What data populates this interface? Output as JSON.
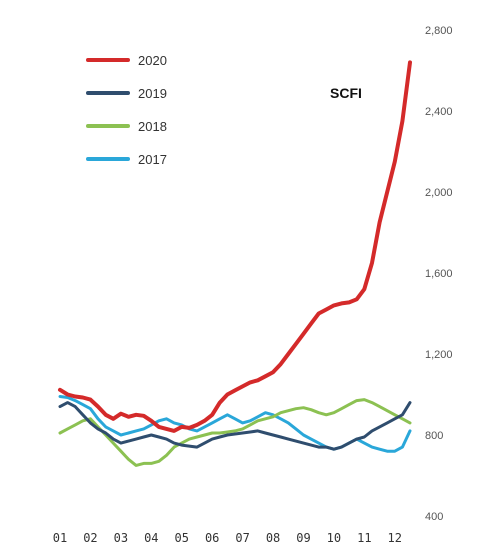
{
  "chart_data": {
    "type": "line",
    "title": "SCFI",
    "xlabel": "",
    "ylabel": "",
    "x": [
      "01",
      "02",
      "03",
      "04",
      "05",
      "06",
      "07",
      "08",
      "09",
      "10",
      "11",
      "12"
    ],
    "xlim": [
      1,
      12.5
    ],
    "ylim": [
      400,
      2800
    ],
    "yticks": [
      400,
      800,
      1200,
      1600,
      2000,
      2400,
      2800
    ],
    "ytick_labels": [
      "400",
      "800",
      "1,200",
      "1,600",
      "2,000",
      "2,400",
      "2,800"
    ],
    "grid": false,
    "legend_position": "top-left",
    "y_axis_position": "right",
    "series": [
      {
        "name": "2020",
        "color": "#d42a2a",
        "points": [
          [
            1.0,
            1023
          ],
          [
            1.25,
            1000
          ],
          [
            1.5,
            990
          ],
          [
            1.75,
            985
          ],
          [
            2.0,
            975
          ],
          [
            2.25,
            940
          ],
          [
            2.5,
            900
          ],
          [
            2.75,
            880
          ],
          [
            3.0,
            905
          ],
          [
            3.25,
            890
          ],
          [
            3.5,
            900
          ],
          [
            3.75,
            895
          ],
          [
            4.0,
            870
          ],
          [
            4.25,
            840
          ],
          [
            4.5,
            830
          ],
          [
            4.75,
            820
          ],
          [
            5.0,
            840
          ],
          [
            5.25,
            835
          ],
          [
            5.5,
            850
          ],
          [
            5.75,
            870
          ],
          [
            6.0,
            900
          ],
          [
            6.25,
            960
          ],
          [
            6.5,
            1000
          ],
          [
            6.75,
            1020
          ],
          [
            7.0,
            1040
          ],
          [
            7.25,
            1060
          ],
          [
            7.5,
            1070
          ],
          [
            7.75,
            1090
          ],
          [
            8.0,
            1110
          ],
          [
            8.25,
            1150
          ],
          [
            8.5,
            1200
          ],
          [
            8.75,
            1250
          ],
          [
            9.0,
            1300
          ],
          [
            9.25,
            1350
          ],
          [
            9.5,
            1400
          ],
          [
            9.75,
            1420
          ],
          [
            10.0,
            1440
          ],
          [
            10.25,
            1450
          ],
          [
            10.5,
            1455
          ],
          [
            10.75,
            1470
          ],
          [
            11.0,
            1520
          ],
          [
            11.25,
            1650
          ],
          [
            11.5,
            1850
          ],
          [
            11.75,
            2000
          ],
          [
            12.0,
            2150
          ],
          [
            12.25,
            2350
          ],
          [
            12.5,
            2640
          ]
        ]
      },
      {
        "name": "2019",
        "color": "#2f4d6e",
        "points": [
          [
            1.0,
            940
          ],
          [
            1.25,
            960
          ],
          [
            1.5,
            940
          ],
          [
            1.75,
            900
          ],
          [
            2.0,
            860
          ],
          [
            2.25,
            830
          ],
          [
            2.5,
            810
          ],
          [
            2.75,
            780
          ],
          [
            3.0,
            760
          ],
          [
            3.25,
            770
          ],
          [
            3.5,
            780
          ],
          [
            3.75,
            790
          ],
          [
            4.0,
            800
          ],
          [
            4.25,
            790
          ],
          [
            4.5,
            780
          ],
          [
            4.75,
            760
          ],
          [
            5.0,
            750
          ],
          [
            5.25,
            745
          ],
          [
            5.5,
            740
          ],
          [
            5.75,
            760
          ],
          [
            6.0,
            780
          ],
          [
            6.25,
            790
          ],
          [
            6.5,
            800
          ],
          [
            6.75,
            805
          ],
          [
            7.0,
            810
          ],
          [
            7.25,
            815
          ],
          [
            7.5,
            820
          ],
          [
            7.75,
            810
          ],
          [
            8.0,
            800
          ],
          [
            8.25,
            790
          ],
          [
            8.5,
            780
          ],
          [
            8.75,
            770
          ],
          [
            9.0,
            760
          ],
          [
            9.25,
            750
          ],
          [
            9.5,
            740
          ],
          [
            9.75,
            740
          ],
          [
            10.0,
            730
          ],
          [
            10.25,
            740
          ],
          [
            10.5,
            760
          ],
          [
            10.75,
            780
          ],
          [
            11.0,
            790
          ],
          [
            11.25,
            820
          ],
          [
            11.5,
            840
          ],
          [
            11.75,
            860
          ],
          [
            12.0,
            880
          ],
          [
            12.25,
            900
          ],
          [
            12.5,
            960
          ]
        ]
      },
      {
        "name": "2018",
        "color": "#8cc152",
        "points": [
          [
            1.0,
            810
          ],
          [
            1.25,
            830
          ],
          [
            1.5,
            850
          ],
          [
            1.75,
            870
          ],
          [
            2.0,
            880
          ],
          [
            2.25,
            840
          ],
          [
            2.5,
            800
          ],
          [
            2.75,
            760
          ],
          [
            3.0,
            720
          ],
          [
            3.25,
            680
          ],
          [
            3.5,
            650
          ],
          [
            3.75,
            660
          ],
          [
            4.0,
            660
          ],
          [
            4.25,
            670
          ],
          [
            4.5,
            700
          ],
          [
            4.75,
            740
          ],
          [
            5.0,
            760
          ],
          [
            5.25,
            780
          ],
          [
            5.5,
            790
          ],
          [
            5.75,
            800
          ],
          [
            6.0,
            810
          ],
          [
            6.25,
            810
          ],
          [
            6.5,
            815
          ],
          [
            6.75,
            820
          ],
          [
            7.0,
            830
          ],
          [
            7.25,
            850
          ],
          [
            7.5,
            870
          ],
          [
            7.75,
            880
          ],
          [
            8.0,
            890
          ],
          [
            8.25,
            910
          ],
          [
            8.5,
            920
          ],
          [
            8.75,
            930
          ],
          [
            9.0,
            935
          ],
          [
            9.25,
            925
          ],
          [
            9.5,
            910
          ],
          [
            9.75,
            900
          ],
          [
            10.0,
            910
          ],
          [
            10.25,
            930
          ],
          [
            10.5,
            950
          ],
          [
            10.75,
            970
          ],
          [
            11.0,
            975
          ],
          [
            11.25,
            960
          ],
          [
            11.5,
            940
          ],
          [
            11.75,
            920
          ],
          [
            12.0,
            900
          ],
          [
            12.25,
            880
          ],
          [
            12.5,
            860
          ]
        ]
      },
      {
        "name": "2017",
        "color": "#2aa7d9",
        "points": [
          [
            1.0,
            990
          ],
          [
            1.25,
            985
          ],
          [
            1.5,
            970
          ],
          [
            1.75,
            950
          ],
          [
            2.0,
            930
          ],
          [
            2.25,
            880
          ],
          [
            2.5,
            840
          ],
          [
            2.75,
            820
          ],
          [
            3.0,
            800
          ],
          [
            3.25,
            810
          ],
          [
            3.5,
            820
          ],
          [
            3.75,
            830
          ],
          [
            4.0,
            850
          ],
          [
            4.25,
            870
          ],
          [
            4.5,
            880
          ],
          [
            4.75,
            860
          ],
          [
            5.0,
            850
          ],
          [
            5.25,
            830
          ],
          [
            5.5,
            820
          ],
          [
            5.75,
            840
          ],
          [
            6.0,
            860
          ],
          [
            6.25,
            880
          ],
          [
            6.5,
            900
          ],
          [
            6.75,
            880
          ],
          [
            7.0,
            860
          ],
          [
            7.25,
            870
          ],
          [
            7.5,
            890
          ],
          [
            7.75,
            910
          ],
          [
            8.0,
            900
          ],
          [
            8.25,
            880
          ],
          [
            8.5,
            860
          ],
          [
            8.75,
            830
          ],
          [
            9.0,
            800
          ],
          [
            9.25,
            780
          ],
          [
            9.5,
            760
          ],
          [
            9.75,
            740
          ],
          [
            10.0,
            730
          ],
          [
            10.25,
            740
          ],
          [
            10.5,
            760
          ],
          [
            10.75,
            780
          ],
          [
            11.0,
            760
          ],
          [
            11.25,
            740
          ],
          [
            11.5,
            730
          ],
          [
            11.75,
            720
          ],
          [
            12.0,
            720
          ],
          [
            12.25,
            740
          ],
          [
            12.5,
            820
          ]
        ]
      }
    ]
  }
}
